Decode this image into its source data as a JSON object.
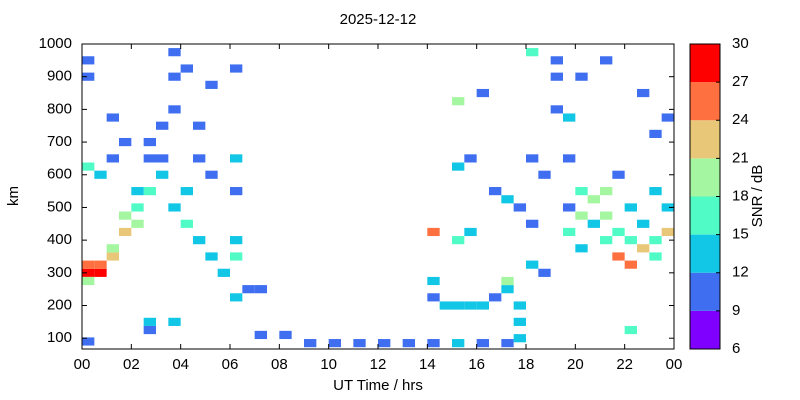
{
  "chart_data": {
    "type": "heatmap",
    "title": "2025-12-12",
    "xlabel": "UT Time / hrs",
    "ylabel": "km",
    "colorbar_label": "SNR / dB",
    "xlim": [
      0,
      24
    ],
    "xticks": [
      {
        "value": 0,
        "label": "00"
      },
      {
        "value": 2,
        "label": "02"
      },
      {
        "value": 4,
        "label": "04"
      },
      {
        "value": 6,
        "label": "06"
      },
      {
        "value": 8,
        "label": "08"
      },
      10,
      12,
      14,
      16,
      18,
      20,
      22,
      {
        "value": 24,
        "label": "00"
      }
    ],
    "ylim": [
      67,
      1000
    ],
    "yticks": [
      100,
      200,
      300,
      400,
      500,
      600,
      700,
      800,
      900,
      1000
    ],
    "clim": [
      6,
      30
    ],
    "cticks": [
      6,
      9,
      12,
      15,
      18,
      21,
      24,
      27,
      30
    ],
    "colors": [
      "#7f00ff",
      "#3f6ff0",
      "#12c6e6",
      "#50fbc6",
      "#a4f6a0",
      "#e8c878",
      "#ff7040",
      "#ff0000"
    ],
    "x": [
      0.25,
      0.75,
      0.25,
      0.75,
      1.25,
      0.25,
      0.25,
      0.75,
      0.25,
      0.25,
      1.25,
      1.75,
      1.75,
      2.25,
      2.25,
      2.75,
      2.25,
      1.25,
      1.75,
      1.25,
      2.75,
      2.75,
      3.25,
      3.25,
      3.25,
      3.75,
      3.75,
      3.75,
      4.25,
      3.75,
      4.25,
      4.25,
      4.75,
      4.75,
      4.75,
      5.25,
      5.25,
      5.75,
      6.25,
      6.25,
      6.25,
      6.75,
      6.25,
      6.25,
      5.25,
      6.25,
      7.25,
      0.25,
      7.25,
      8.25,
      9.25,
      10.25,
      11.25,
      12.25,
      13.25,
      14.25,
      15.25,
      16.25,
      17.25,
      2.75,
      3.75,
      2.75,
      14.25,
      14.25,
      14.75,
      15.25,
      15.75,
      16.25,
      16.75,
      17.25,
      17.75,
      17.75,
      17.75,
      17.25,
      18.25,
      14.25,
      15.25,
      15.75,
      15.25,
      15.75,
      15.25,
      16.25,
      16.75,
      17.25,
      17.75,
      18.25,
      18.25,
      18.75,
      18.25,
      19.25,
      19.75,
      19.75,
      19.25,
      19.75,
      19.75,
      18.75,
      20.25,
      20.25,
      20.75,
      20.75,
      21.25,
      21.25,
      21.25,
      21.75,
      21.75,
      22.25,
      22.25,
      22.75,
      22.75,
      23.25,
      23.25,
      23.75,
      23.75,
      20.25,
      22.25,
      21.75,
      22.25,
      23.25,
      23.75,
      22.75,
      21.25,
      20.25,
      23.25,
      19.25
    ],
    "y": [
      300,
      300,
      325,
      325,
      350,
      275,
      625,
      600,
      900,
      950,
      375,
      425,
      475,
      500,
      450,
      550,
      550,
      650,
      700,
      775,
      650,
      700,
      750,
      650,
      600,
      800,
      900,
      975,
      925,
      500,
      450,
      550,
      400,
      650,
      750,
      350,
      600,
      300,
      225,
      350,
      400,
      250,
      550,
      650,
      875,
      925,
      250,
      90,
      110,
      110,
      85,
      85,
      85,
      85,
      85,
      85,
      85,
      85,
      85,
      125,
      150,
      150,
      275,
      225,
      200,
      200,
      200,
      200,
      225,
      250,
      200,
      150,
      100,
      275,
      325,
      425,
      400,
      425,
      625,
      650,
      825,
      850,
      550,
      525,
      500,
      450,
      650,
      600,
      975,
      800,
      775,
      650,
      900,
      500,
      425,
      300,
      550,
      475,
      525,
      450,
      550,
      475,
      400,
      425,
      350,
      400,
      325,
      375,
      450,
      400,
      350,
      425,
      500,
      375,
      500,
      600,
      125,
      725,
      775,
      850,
      950,
      900,
      550,
      950
    ],
    "values": [
      28,
      27,
      26,
      25,
      23,
      20,
      15,
      13,
      10,
      10,
      20,
      22,
      18,
      17,
      19,
      15,
      13,
      10,
      10,
      9,
      10,
      11,
      10,
      10,
      12,
      10,
      9,
      9,
      10,
      14,
      15,
      12,
      13,
      10,
      10,
      14,
      10,
      13,
      14,
      16,
      12,
      11,
      10,
      12,
      9,
      10,
      10,
      10,
      10,
      10,
      10,
      10,
      10,
      11,
      10,
      10,
      12,
      10,
      9,
      10,
      12,
      13,
      12,
      11,
      14,
      13,
      12,
      13,
      10,
      12,
      12,
      12,
      12,
      20,
      12,
      25,
      15,
      13,
      14,
      10,
      18,
      10,
      10,
      12,
      10,
      10,
      10,
      10,
      17,
      10,
      12,
      11,
      10,
      10,
      15,
      10,
      15,
      18,
      19,
      14,
      20,
      18,
      15,
      17,
      24,
      16,
      24,
      22,
      13,
      17,
      15,
      21,
      12,
      12,
      12,
      10,
      15,
      10,
      9,
      10,
      9,
      10,
      12,
      9
    ]
  }
}
